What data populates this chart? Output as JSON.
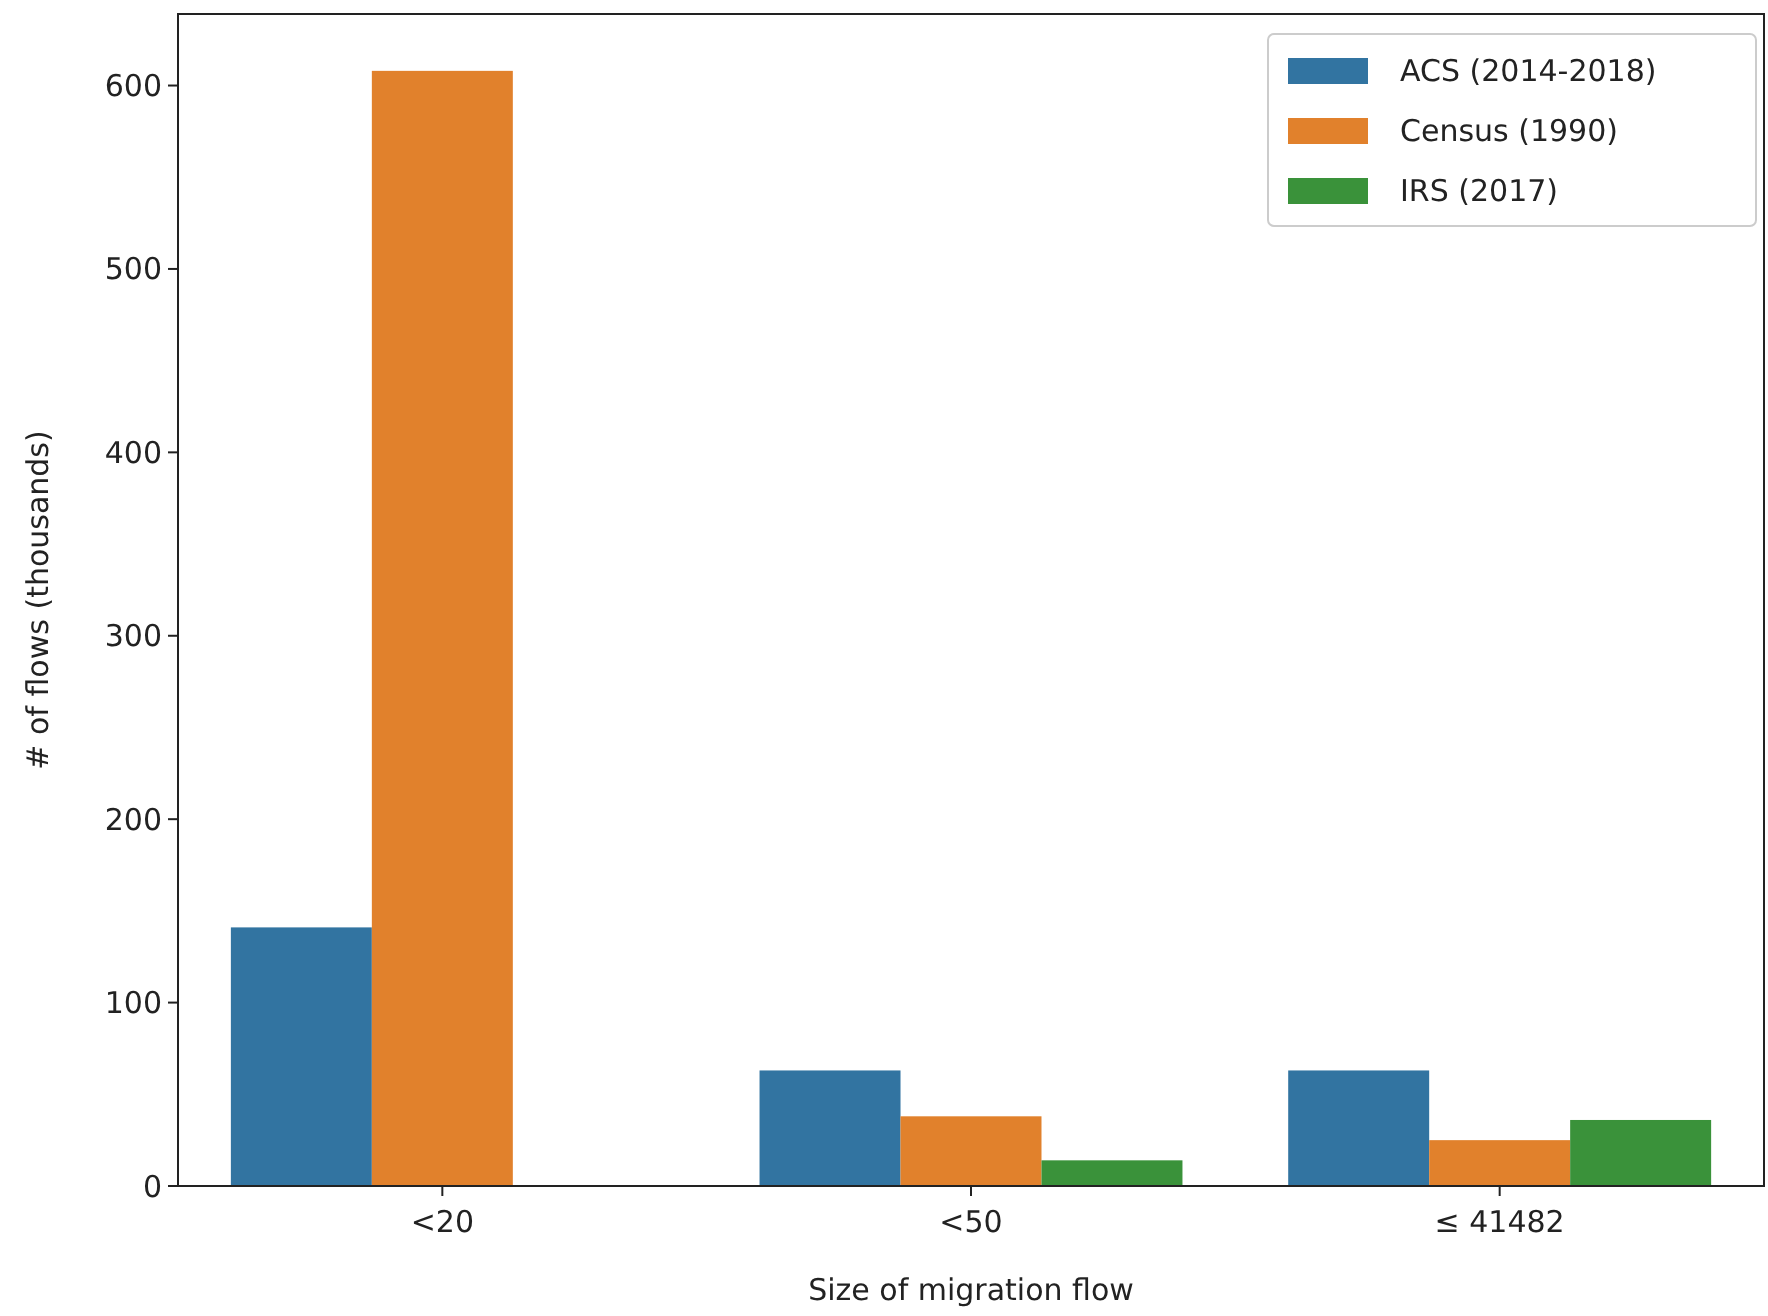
{
  "chart_data": {
    "type": "bar",
    "xlabel": "Size of migration flow",
    "ylabel": "# of flows (thousands)",
    "categories": [
      "<20",
      "<50",
      "≤ 41482"
    ],
    "series": [
      {
        "name": "ACS (2014-2018)",
        "color": "#3274a1",
        "values": [
          141,
          63,
          63
        ]
      },
      {
        "name": "Census (1990)",
        "color": "#e1812c",
        "values": [
          608,
          38,
          25
        ]
      },
      {
        "name": "IRS (2017)",
        "color": "#3a923a",
        "values": [
          null,
          14,
          36
        ]
      }
    ],
    "ylim": [
      0,
      639
    ],
    "yticks": [
      0,
      100,
      200,
      300,
      400,
      500,
      600
    ],
    "legend": "top right"
  }
}
